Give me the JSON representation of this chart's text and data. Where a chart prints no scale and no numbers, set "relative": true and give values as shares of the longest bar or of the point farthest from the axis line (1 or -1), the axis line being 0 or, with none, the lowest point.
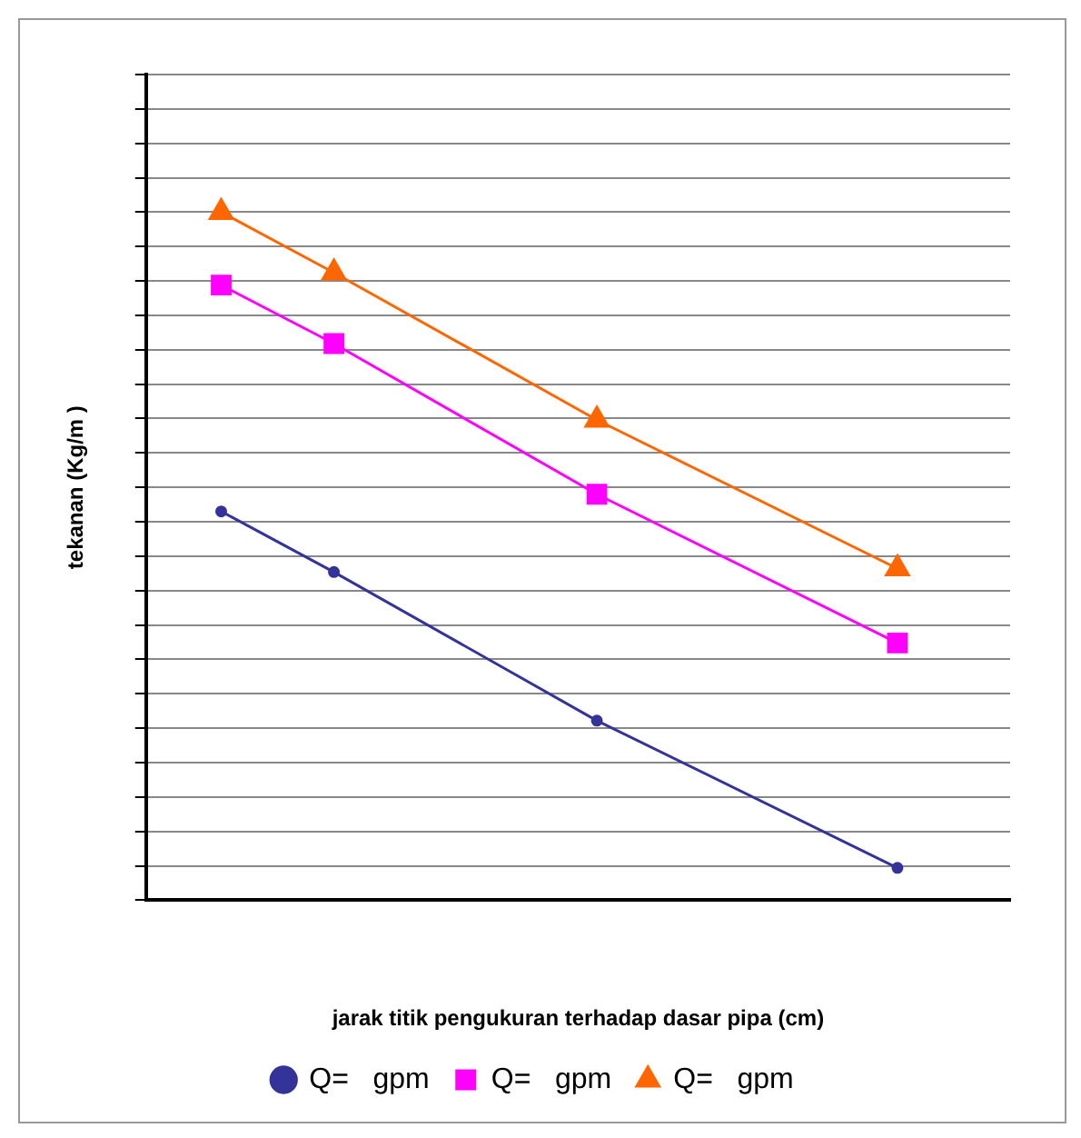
{
  "chart_data": {
    "type": "line",
    "relative": true,
    "xlabel": "jarak titik pengukuran terhadap dasar pipa (cm)",
    "ylabel": "tekanan (Kg/m )",
    "categories": [
      null,
      null,
      null,
      null,
      null,
      null,
      null,
      null,
      null,
      null,
      null,
      null,
      null,
      null,
      null,
      null,
      null,
      null,
      null,
      null,
      null,
      null,
      null,
      null
    ],
    "series": [
      {
        "name": "Q=   gpm",
        "color": "#333399",
        "marker": "circle",
        "values": [
          null,
          null,
          0.565,
          null,
          null,
          0.477,
          null,
          null,
          null,
          null,
          null,
          null,
          0.261,
          null,
          null,
          null,
          null,
          null,
          null,
          null,
          0.047,
          null,
          null,
          null
        ]
      },
      {
        "name": "Q=   gpm",
        "color": "#ff00ff",
        "marker": "square",
        "values": [
          null,
          null,
          0.894,
          null,
          null,
          0.809,
          null,
          null,
          null,
          null,
          null,
          null,
          0.59,
          null,
          null,
          null,
          null,
          null,
          null,
          null,
          0.374,
          null,
          null,
          null
        ]
      },
      {
        "name": "Q=   gpm",
        "color": "#ff6600",
        "marker": "triangle",
        "values": [
          null,
          null,
          1,
          null,
          null,
          0.912,
          null,
          null,
          null,
          null,
          null,
          null,
          0.698,
          null,
          null,
          null,
          null,
          null,
          null,
          null,
          0.482,
          null,
          null,
          null
        ]
      }
    ],
    "grid": "y",
    "legend": "bottom"
  }
}
